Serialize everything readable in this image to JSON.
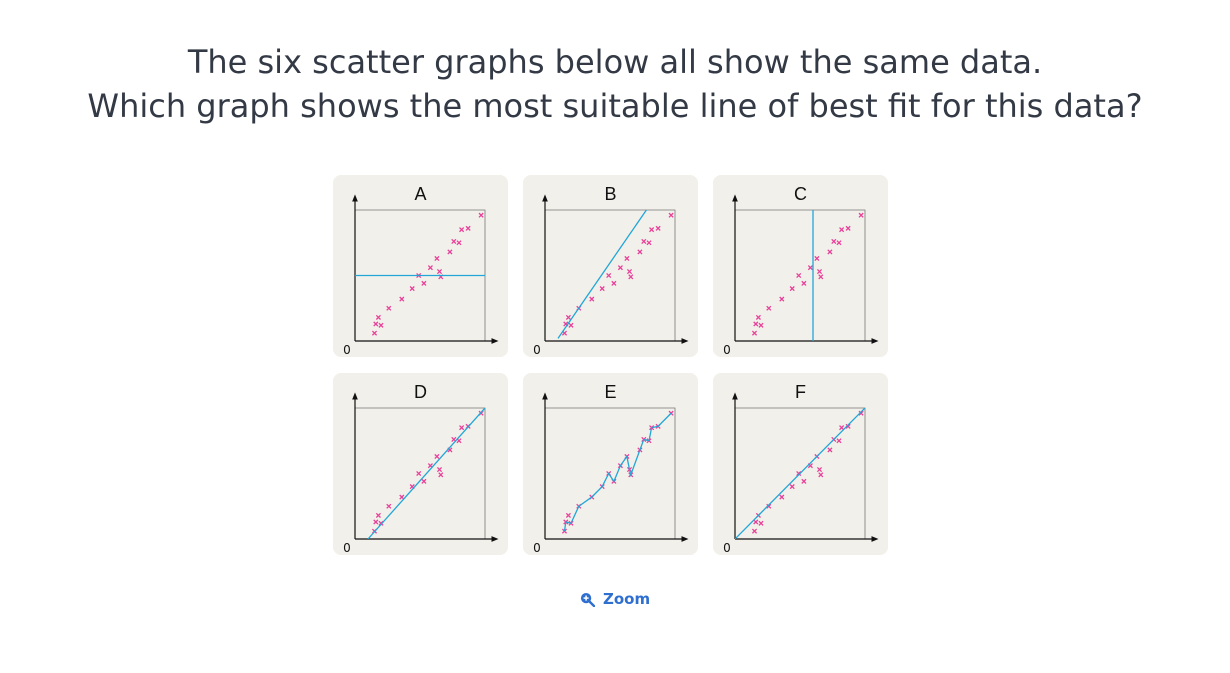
{
  "question": {
    "line1": "The six scatter graphs below all show the same data.",
    "line2": "Which graph shows the most suitable line of best fit for this data?"
  },
  "zoom": {
    "label": "Zoom",
    "icon": "zoom-in-icon"
  },
  "colors": {
    "points": "#e8409a",
    "line": "#22a6d8",
    "axis": "#111111",
    "panel_bg": "#f2f0ea",
    "zoom": "#2f6fd0"
  },
  "chart_data": {
    "type": "scatter",
    "origin_label": "0",
    "xlim": [
      0,
      10
    ],
    "ylim": [
      0,
      10
    ],
    "points": [
      [
        1.5,
        0.6
      ],
      [
        1.6,
        1.3
      ],
      [
        1.8,
        1.8
      ],
      [
        2.0,
        1.2
      ],
      [
        2.6,
        2.5
      ],
      [
        3.6,
        3.2
      ],
      [
        4.4,
        4.0
      ],
      [
        4.9,
        5.0
      ],
      [
        5.3,
        4.4
      ],
      [
        5.8,
        5.6
      ],
      [
        6.3,
        6.3
      ],
      [
        6.5,
        5.3
      ],
      [
        6.6,
        4.9
      ],
      [
        7.3,
        6.8
      ],
      [
        7.6,
        7.6
      ],
      [
        8.0,
        7.5
      ],
      [
        8.2,
        8.5
      ],
      [
        8.7,
        8.6
      ],
      [
        9.7,
        9.6
      ]
    ],
    "graphs": [
      {
        "label": "A",
        "fit_line": [
          [
            0,
            5.0
          ],
          [
            10,
            5.0
          ]
        ]
      },
      {
        "label": "B",
        "fit_line": [
          [
            1.0,
            0.2
          ],
          [
            7.8,
            10.0
          ]
        ]
      },
      {
        "label": "C",
        "fit_line": [
          [
            6.0,
            0
          ],
          [
            6.0,
            10.0
          ]
        ]
      },
      {
        "label": "D",
        "fit_line": [
          [
            1.0,
            0
          ],
          [
            10.0,
            10.0
          ]
        ]
      },
      {
        "label": "E",
        "fit_line": [
          [
            1.5,
            0.6
          ],
          [
            1.6,
            1.3
          ],
          [
            2.0,
            1.2
          ],
          [
            2.6,
            2.5
          ],
          [
            3.6,
            3.2
          ],
          [
            4.4,
            4.0
          ],
          [
            4.9,
            5.0
          ],
          [
            5.3,
            4.4
          ],
          [
            5.8,
            5.6
          ],
          [
            6.3,
            6.3
          ],
          [
            6.5,
            5.3
          ],
          [
            6.6,
            4.9
          ],
          [
            7.3,
            6.8
          ],
          [
            7.6,
            7.6
          ],
          [
            8.0,
            7.5
          ],
          [
            8.2,
            8.5
          ],
          [
            8.7,
            8.6
          ],
          [
            9.7,
            9.6
          ]
        ]
      },
      {
        "label": "F",
        "fit_line": [
          [
            0,
            0
          ],
          [
            10.0,
            10.0
          ]
        ]
      }
    ]
  }
}
